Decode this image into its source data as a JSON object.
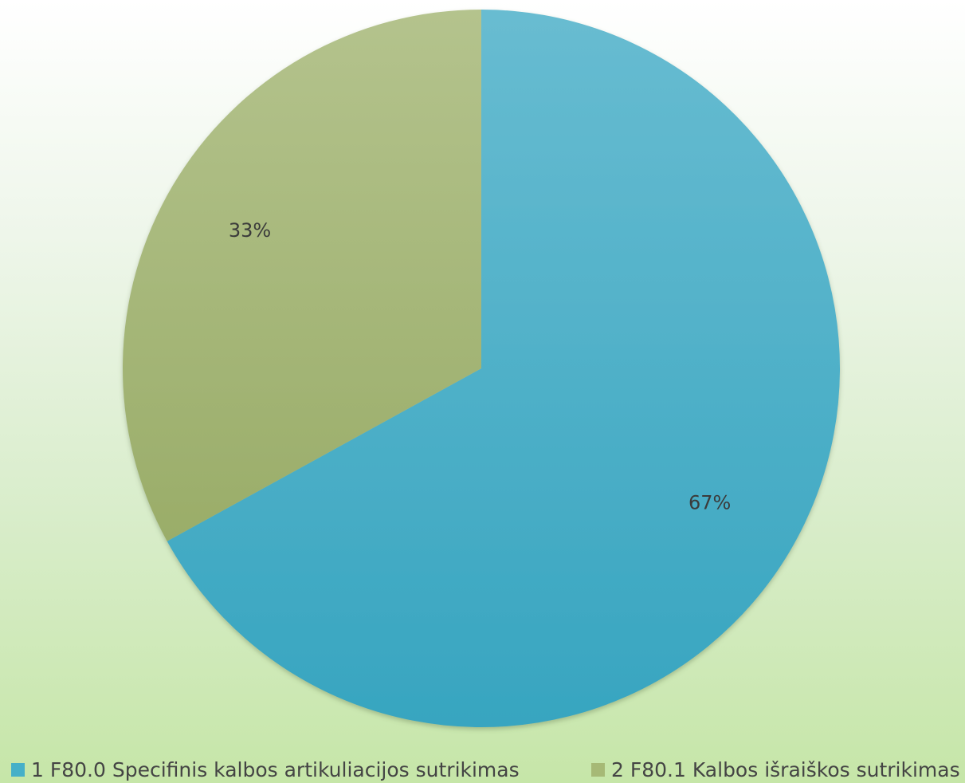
{
  "chart_data": {
    "type": "pie",
    "categories": [
      "1 F80.0 Specifinis kalbos artikuliacijos sutrikimas",
      "2 F80.1 Kalbos išraiškos sutrikimas"
    ],
    "values": [
      67,
      33
    ],
    "data_labels": [
      "67%",
      "33%"
    ],
    "colors": [
      "#46b0c8",
      "#a6b976"
    ],
    "start_angle_deg": 0,
    "direction": "clockwise",
    "legend_position": "bottom"
  }
}
